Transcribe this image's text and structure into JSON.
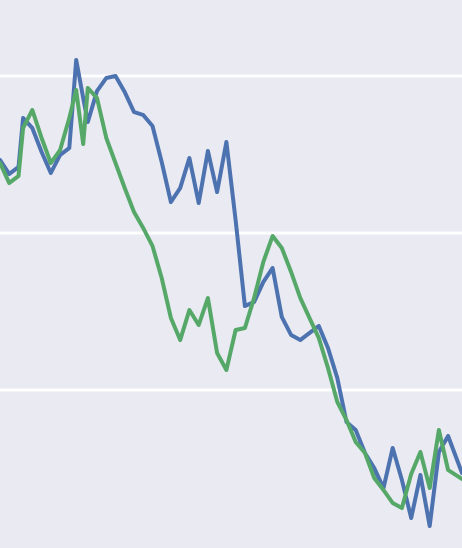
{
  "chart_data": {
    "type": "line",
    "title": "",
    "xlabel": "",
    "ylabel": "",
    "grid": true,
    "xlim": [
      0,
      100
    ],
    "ylim": [
      0,
      548
    ],
    "gridlines_y": [
      472,
      315,
      158
    ],
    "background": "#eaeaf2",
    "gridline_color": "#ffffff",
    "series": [
      {
        "color": "#4c72b0",
        "x": [
          0,
          2,
          4,
          5,
          7,
          9,
          11,
          13,
          15,
          16.5,
          18,
          19,
          21,
          23,
          25,
          27,
          29,
          31,
          33,
          35,
          37,
          39,
          41,
          43,
          45,
          47,
          49,
          51,
          53,
          55,
          57,
          59,
          61,
          63,
          65,
          67,
          69,
          71,
          73,
          75,
          77,
          79,
          81,
          83,
          85,
          87,
          89,
          91,
          93,
          95,
          97,
          100
        ],
        "y": [
          388,
          374,
          381,
          430,
          420,
          396,
          375,
          393,
          400,
          488,
          450,
          426,
          457,
          470,
          472,
          456,
          436,
          433,
          422,
          386,
          346,
          360,
          390,
          345,
          397,
          356,
          406,
          328,
          242,
          246,
          266,
          280,
          231,
          213,
          208,
          215,
          222,
          200,
          170,
          126,
          118,
          95,
          80,
          60,
          100,
          68,
          30,
          73,
          22,
          96,
          112,
          75
        ]
      },
      {
        "color": "#55a868",
        "x": [
          0,
          2,
          4,
          5,
          7,
          9,
          11,
          13,
          15,
          16.5,
          18,
          19,
          21,
          23,
          25,
          27,
          29,
          31,
          33,
          35,
          37,
          39,
          41,
          43,
          45,
          47,
          49,
          51,
          53,
          55,
          57,
          59,
          61,
          63,
          65,
          67,
          69,
          71,
          73,
          75,
          77,
          79,
          81,
          83,
          85,
          87,
          89,
          91,
          93,
          95,
          97,
          100
        ],
        "y": [
          385,
          365,
          372,
          420,
          438,
          410,
          385,
          398,
          430,
          458,
          404,
          460,
          450,
          410,
          385,
          360,
          336,
          320,
          302,
          270,
          230,
          208,
          238,
          223,
          250,
          195,
          178,
          218,
          220,
          250,
          286,
          312,
          300,
          276,
          250,
          230,
          210,
          180,
          146,
          128,
          106,
          95,
          70,
          58,
          45,
          40,
          74,
          96,
          60,
          118,
          78,
          69
        ]
      }
    ]
  }
}
